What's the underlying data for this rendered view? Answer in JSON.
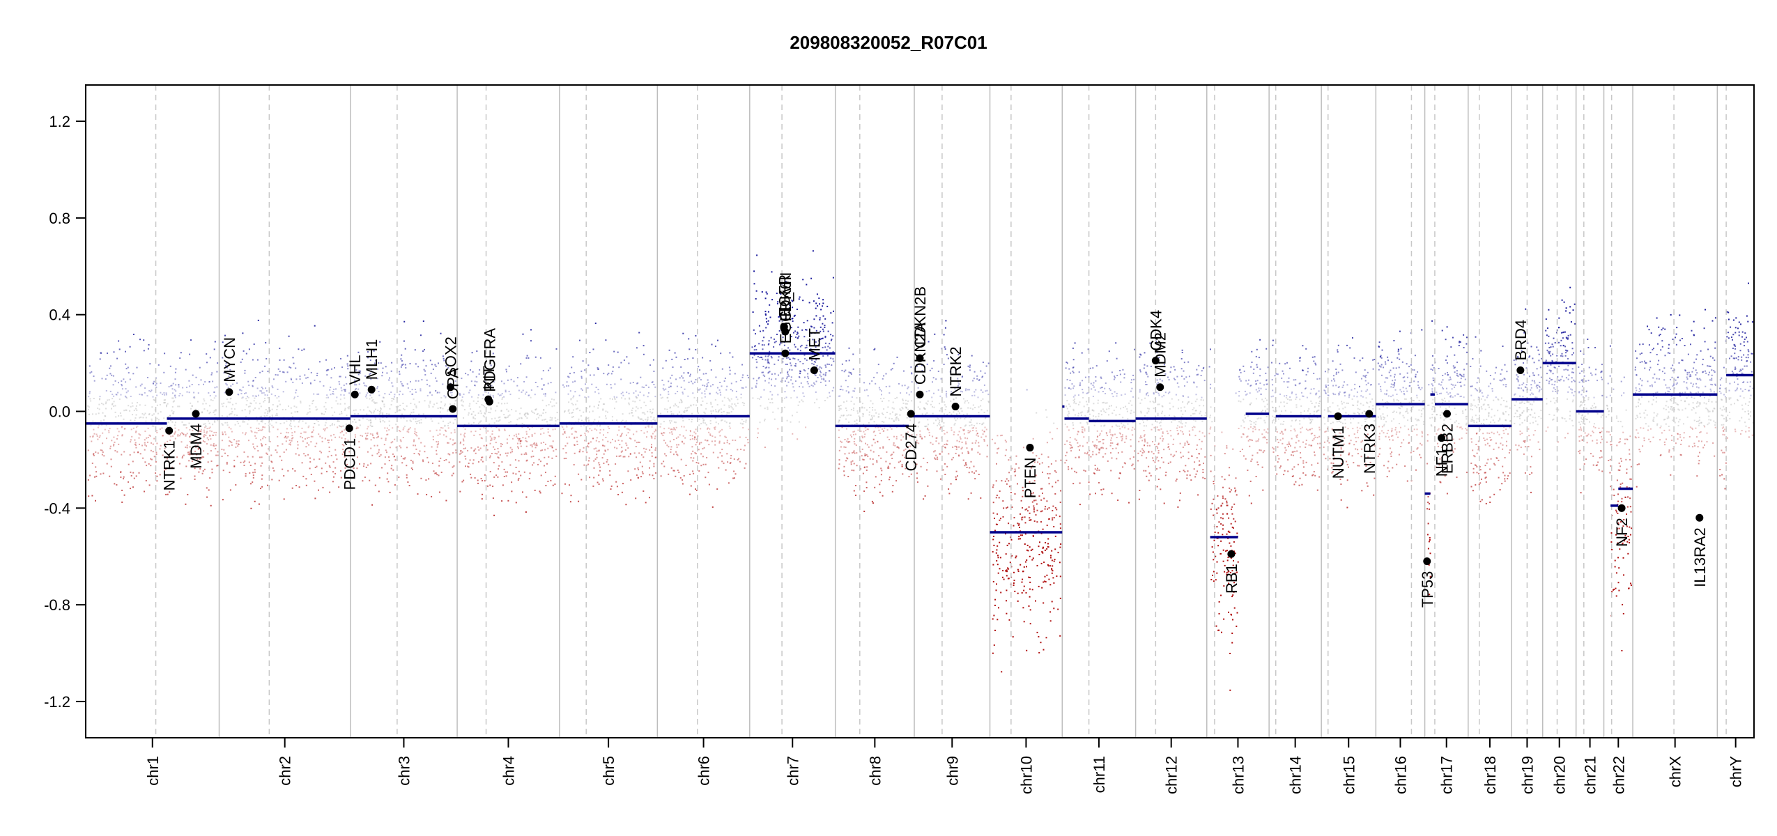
{
  "chart_data": {
    "type": "scatter",
    "title": "209808320052_R07C01",
    "xlabel": "",
    "ylabel": "",
    "ylim": [
      -1.35,
      1.35
    ],
    "yticks": [
      1.2,
      0.8,
      0.4,
      0.0,
      -0.4,
      -0.8,
      -1.2
    ],
    "ytick_labels": [
      "1.2",
      "0.8",
      "0.4",
      "0.0",
      "-0.4",
      "-0.8",
      "-1.2"
    ],
    "xlim": [
      0,
      150
    ],
    "chromosomes": [
      {
        "name": "chr1",
        "start": 0,
        "end": 12.0,
        "centromere": 6.3
      },
      {
        "name": "chr2",
        "start": 12.0,
        "end": 23.8,
        "centromere": 16.5
      },
      {
        "name": "chr3",
        "start": 23.8,
        "end": 33.4,
        "centromere": 28.0
      },
      {
        "name": "chr4",
        "start": 33.4,
        "end": 42.6,
        "centromere": 36.0
      },
      {
        "name": "chr5",
        "start": 42.6,
        "end": 51.4,
        "centromere": 45.0
      },
      {
        "name": "chr6",
        "start": 51.4,
        "end": 59.7,
        "centromere": 55.0
      },
      {
        "name": "chr7",
        "start": 59.7,
        "end": 67.4,
        "centromere": 62.6
      },
      {
        "name": "chr8",
        "start": 67.4,
        "end": 74.5,
        "centromere": 69.6
      },
      {
        "name": "chr9",
        "start": 74.5,
        "end": 81.3,
        "centromere": 77.0
      },
      {
        "name": "chr10",
        "start": 81.3,
        "end": 87.8,
        "centromere": 83.2
      },
      {
        "name": "chr11",
        "start": 87.8,
        "end": 94.4,
        "centromere": 90.2
      },
      {
        "name": "chr12",
        "start": 94.4,
        "end": 100.8,
        "centromere": 96.2
      },
      {
        "name": "chr13",
        "start": 100.8,
        "end": 106.4,
        "centromere": 101.5
      },
      {
        "name": "chr14",
        "start": 106.4,
        "end": 111.1,
        "centromere": 107.0
      },
      {
        "name": "chr15",
        "start": 111.1,
        "end": 116.0,
        "centromere": 111.7
      },
      {
        "name": "chr16",
        "start": 116.0,
        "end": 120.4,
        "centromere": 119.2
      },
      {
        "name": "chr17",
        "start": 120.4,
        "end": 124.3,
        "centromere": 121.3
      },
      {
        "name": "chr18",
        "start": 124.3,
        "end": 128.2,
        "centromere": 125.3
      },
      {
        "name": "chr19",
        "start": 128.2,
        "end": 131.0,
        "centromere": 129.6
      },
      {
        "name": "chr20",
        "start": 131.0,
        "end": 134.0,
        "centromere": 132.3
      },
      {
        "name": "chr21",
        "start": 134.0,
        "end": 136.5,
        "centromere": 134.7
      },
      {
        "name": "chr22",
        "start": 136.5,
        "end": 139.1,
        "centromere": 137.2
      },
      {
        "name": "chrX",
        "start": 139.1,
        "end": 146.7,
        "centromere": 142.8
      },
      {
        "name": "chrY",
        "start": 146.7,
        "end": 150.0,
        "centromere": 147.5
      }
    ],
    "segments": [
      {
        "x0": 0,
        "x1": 7.3,
        "y": -0.05
      },
      {
        "x0": 7.3,
        "x1": 23.8,
        "y": -0.03
      },
      {
        "x0": 23.8,
        "x1": 33.4,
        "y": -0.02
      },
      {
        "x0": 33.4,
        "x1": 42.6,
        "y": -0.06
      },
      {
        "x0": 42.6,
        "x1": 51.4,
        "y": -0.05
      },
      {
        "x0": 51.4,
        "x1": 59.7,
        "y": -0.02
      },
      {
        "x0": 59.7,
        "x1": 67.4,
        "y": 0.24
      },
      {
        "x0": 67.4,
        "x1": 74.0,
        "y": -0.06
      },
      {
        "x0": 74.0,
        "x1": 81.3,
        "y": -0.02
      },
      {
        "x0": 81.3,
        "x1": 87.8,
        "y": -0.5
      },
      {
        "x0": 87.8,
        "x1": 88.0,
        "y": 0.02
      },
      {
        "x0": 88.0,
        "x1": 90.2,
        "y": -0.03
      },
      {
        "x0": 90.2,
        "x1": 94.4,
        "y": -0.04
      },
      {
        "x0": 94.4,
        "x1": 100.8,
        "y": -0.03
      },
      {
        "x0": 101.1,
        "x1": 103.6,
        "y": -0.52
      },
      {
        "x0": 104.3,
        "x1": 106.4,
        "y": -0.01
      },
      {
        "x0": 107.0,
        "x1": 111.1,
        "y": -0.02
      },
      {
        "x0": 111.7,
        "x1": 116.0,
        "y": -0.02
      },
      {
        "x0": 116.0,
        "x1": 120.4,
        "y": 0.03
      },
      {
        "x0": 120.4,
        "x1": 120.9,
        "y": -0.34
      },
      {
        "x0": 120.9,
        "x1": 121.3,
        "y": 0.07
      },
      {
        "x0": 121.3,
        "x1": 124.3,
        "y": 0.03
      },
      {
        "x0": 124.3,
        "x1": 128.2,
        "y": -0.06
      },
      {
        "x0": 128.2,
        "x1": 131.0,
        "y": 0.05
      },
      {
        "x0": 131.0,
        "x1": 134.0,
        "y": 0.2
      },
      {
        "x0": 134.0,
        "x1": 136.5,
        "y": 0.0
      },
      {
        "x0": 137.1,
        "x1": 137.8,
        "y": -0.39
      },
      {
        "x0": 137.8,
        "x1": 139.1,
        "y": -0.32
      },
      {
        "x0": 139.1,
        "x1": 146.7,
        "y": 0.07
      },
      {
        "x0": 147.5,
        "x1": 150.0,
        "y": 0.15
      }
    ],
    "genes": [
      {
        "name": "NTRK1",
        "x": 7.5,
        "y": -0.08,
        "label_side": "below"
      },
      {
        "name": "MDM4",
        "x": 9.9,
        "y": -0.01,
        "label_side": "below"
      },
      {
        "name": "MYCN",
        "x": 12.9,
        "y": 0.08,
        "label_side": "above"
      },
      {
        "name": "PDCD1",
        "x": 23.7,
        "y": -0.07,
        "label_side": "below"
      },
      {
        "name": "VHL",
        "x": 24.2,
        "y": 0.07,
        "label_side": "above"
      },
      {
        "name": "MLH1",
        "x": 25.7,
        "y": 0.09,
        "label_side": "above"
      },
      {
        "name": "SOX2",
        "x": 32.8,
        "y": 0.1,
        "label_side": "above"
      },
      {
        "name": "OPA",
        "x": 33.0,
        "y": 0.01,
        "label_side": "above"
      },
      {
        "name": "KIT",
        "x": 36.2,
        "y": 0.05,
        "label_side": "above"
      },
      {
        "name": "PDGFRA",
        "x": 36.3,
        "y": 0.04,
        "label_side": "above"
      },
      {
        "name": "EGFR",
        "x": 62.8,
        "y": 0.35,
        "label_side": "above"
      },
      {
        "name": "EGFR_vIII",
        "x": 62.9,
        "y": 0.24,
        "label_side": "above"
      },
      {
        "name": "CDK6",
        "x": 62.9,
        "y": 0.33,
        "label_side": "above"
      },
      {
        "name": "MET",
        "x": 65.5,
        "y": 0.17,
        "label_side": "above"
      },
      {
        "name": "CD274",
        "x": 74.2,
        "y": -0.01,
        "label_side": "below"
      },
      {
        "name": "CDKN2A",
        "x": 75.0,
        "y": 0.07,
        "label_side": "above"
      },
      {
        "name": "CDKN2B",
        "x": 75.0,
        "y": 0.22,
        "label_side": "above"
      },
      {
        "name": "NTRK2",
        "x": 78.2,
        "y": 0.02,
        "label_side": "above"
      },
      {
        "name": "PTEN",
        "x": 84.9,
        "y": -0.15,
        "label_side": "below"
      },
      {
        "name": "CDK4",
        "x": 96.2,
        "y": 0.21,
        "label_side": "above"
      },
      {
        "name": "MDM2",
        "x": 96.6,
        "y": 0.1,
        "label_side": "above"
      },
      {
        "name": "RB1",
        "x": 103.0,
        "y": -0.59,
        "label_side": "below"
      },
      {
        "name": "NUTM1",
        "x": 112.6,
        "y": -0.02,
        "label_side": "below"
      },
      {
        "name": "NTRK3",
        "x": 115.4,
        "y": -0.01,
        "label_side": "below"
      },
      {
        "name": "TP53",
        "x": 120.6,
        "y": -0.62,
        "label_side": "below"
      },
      {
        "name": "NF1",
        "x": 121.9,
        "y": -0.11,
        "label_side": "below"
      },
      {
        "name": "ERBB2",
        "x": 122.4,
        "y": -0.01,
        "label_side": "below"
      },
      {
        "name": "BRD4",
        "x": 129.0,
        "y": 0.17,
        "label_side": "above"
      },
      {
        "name": "NF2",
        "x": 138.1,
        "y": -0.4,
        "label_side": "below"
      },
      {
        "name": "IL13RA2",
        "x": 145.1,
        "y": -0.44,
        "label_side": "below"
      }
    ],
    "point_colors": {
      "gain": "#1c1c9c",
      "loss": "#b01010",
      "neutral": "#bbbbbb",
      "segment": "#00008b",
      "gene": "#000000"
    }
  }
}
